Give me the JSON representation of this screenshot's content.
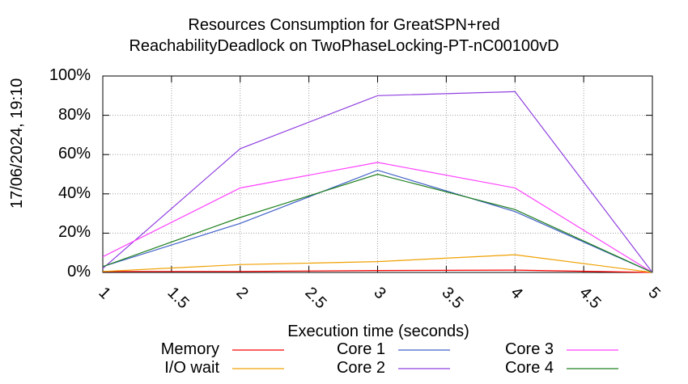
{
  "chart_data": {
    "type": "line",
    "title": "Resources Consumption for GreatSPN+red",
    "subtitle": "ReachabilityDeadlock on TwoPhaseLocking-PT-nC00100vD",
    "xlabel": "Execution time (seconds)",
    "ylabel": "",
    "xlim": [
      1,
      5
    ],
    "ylim": [
      0,
      100
    ],
    "x_ticks": [
      "1",
      "1.5",
      "2",
      "2.5",
      "3",
      "3.5",
      "4",
      "4.5",
      "5"
    ],
    "y_ticks": [
      "0%",
      "20%",
      "40%",
      "60%",
      "80%",
      "100%"
    ],
    "grid": true,
    "legend_position": "bottom",
    "x": [
      1,
      2,
      3,
      4,
      5
    ],
    "series": [
      {
        "name": "Memory",
        "color": "#ff0000",
        "values": [
          0.5,
          0.5,
          1.0,
          1.2,
          0
        ]
      },
      {
        "name": "I/O wait",
        "color": "#f0a000",
        "values": [
          0.5,
          4,
          5.5,
          9,
          0
        ]
      },
      {
        "name": "Core 1",
        "color": "#4060c8",
        "values": [
          3,
          25,
          52,
          31,
          0
        ]
      },
      {
        "name": "Core 2",
        "color": "#9040e0",
        "values": [
          2,
          63,
          90,
          92,
          0
        ]
      },
      {
        "name": "Core 3",
        "color": "#ff40ff",
        "values": [
          8,
          43,
          56,
          43,
          0
        ]
      },
      {
        "name": "Core 4",
        "color": "#208020",
        "values": [
          3,
          28,
          50,
          32,
          0
        ]
      }
    ]
  },
  "timestamp": "17/06/2024, 19:10"
}
